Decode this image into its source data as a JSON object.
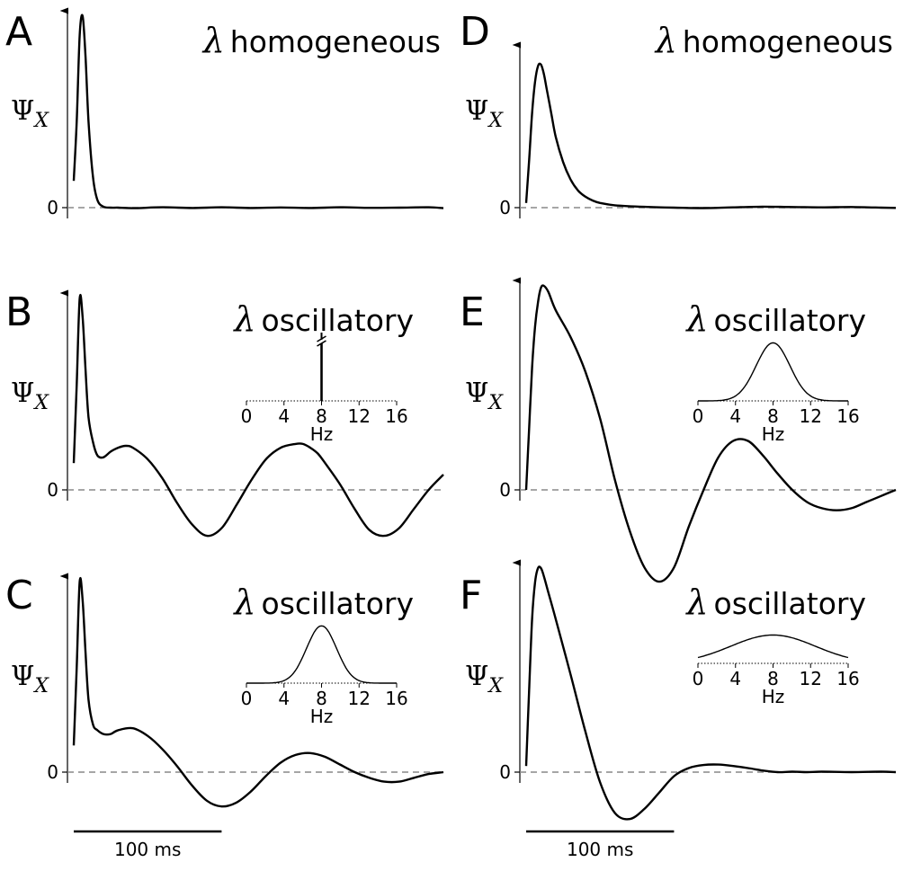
{
  "panels": [
    {
      "id": "A",
      "label": "A",
      "title_symbol": "λ",
      "title_text": "homogeneous",
      "ylabel_symbol": "Ψ",
      "ylabel_sub": "X",
      "zero_label": "0",
      "inset": null
    },
    {
      "id": "B",
      "label": "B",
      "title_symbol": "λ",
      "title_text": "oscillatory",
      "ylabel_symbol": "Ψ",
      "ylabel_sub": "X",
      "zero_label": "0",
      "inset": {
        "type": "spike",
        "peak_hz": 8,
        "xticks": [
          "0",
          "4",
          "8",
          "12",
          "16"
        ],
        "xlabel": "Hz",
        "axis_break": true
      }
    },
    {
      "id": "C",
      "label": "C",
      "title_symbol": "λ",
      "title_text": "oscillatory",
      "ylabel_symbol": "Ψ",
      "ylabel_sub": "X",
      "zero_label": "0",
      "inset": {
        "type": "gaussian",
        "center_hz": 8,
        "sigma_hz": 1.6,
        "rel_height": 0.85,
        "xticks": [
          "0",
          "4",
          "8",
          "12",
          "16"
        ],
        "xlabel": "Hz"
      }
    },
    {
      "id": "D",
      "label": "D",
      "title_symbol": "λ",
      "title_text": "homogeneous",
      "ylabel_symbol": "Ψ",
      "ylabel_sub": "X",
      "zero_label": "0",
      "inset": null
    },
    {
      "id": "E",
      "label": "E",
      "title_symbol": "λ",
      "title_text": "oscillatory",
      "ylabel_symbol": "Ψ",
      "ylabel_sub": "X",
      "zero_label": "0",
      "inset": {
        "type": "gaussian",
        "center_hz": 8,
        "sigma_hz": 1.8,
        "rel_height": 0.95,
        "xticks": [
          "0",
          "4",
          "8",
          "12",
          "16"
        ],
        "xlabel": "Hz"
      }
    },
    {
      "id": "F",
      "label": "F",
      "title_symbol": "λ",
      "title_text": "oscillatory",
      "ylabel_symbol": "Ψ",
      "ylabel_sub": "X",
      "zero_label": "0",
      "inset": {
        "type": "gaussian",
        "center_hz": 8,
        "sigma_hz": 4.5,
        "rel_height": 0.45,
        "xticks": [
          "0",
          "4",
          "8",
          "12",
          "16"
        ],
        "xlabel": "Hz"
      }
    }
  ],
  "scale_bar": {
    "label": "100 ms",
    "duration_ms": 100
  },
  "chart_data": [
    {
      "panel": "A",
      "type": "line",
      "xlim_ms": [
        0,
        250
      ],
      "ylim": [
        -0.05,
        1.0
      ],
      "x": [
        0,
        2,
        4,
        6,
        8,
        10,
        13,
        16,
        20,
        25,
        30,
        40,
        60,
        80,
        100,
        120,
        140,
        160,
        180,
        200,
        220,
        240,
        250
      ],
      "y": [
        0.14,
        0.45,
        0.9,
        1.0,
        0.78,
        0.45,
        0.16,
        0.04,
        0.005,
        0.0,
        0.0,
        -0.003,
        0.002,
        -0.002,
        0.002,
        -0.002,
        0.001,
        -0.002,
        0.002,
        -0.001,
        0.0,
        0.002,
        -0.003
      ]
    },
    {
      "panel": "B",
      "type": "line",
      "xlim_ms": [
        0,
        250
      ],
      "ylim": [
        -0.25,
        1.0
      ],
      "x": [
        0,
        2,
        4,
        6,
        8,
        10,
        13,
        16,
        20,
        25,
        30,
        35,
        40,
        50,
        60,
        70,
        80,
        90,
        100,
        110,
        120,
        130,
        140,
        150,
        155,
        160,
        165,
        170,
        180,
        190,
        200,
        210,
        220,
        230,
        240,
        250
      ],
      "y": [
        0.14,
        0.55,
        1.0,
        0.9,
        0.62,
        0.38,
        0.25,
        0.18,
        0.17,
        0.2,
        0.22,
        0.23,
        0.22,
        0.16,
        0.06,
        -0.07,
        -0.18,
        -0.24,
        -0.2,
        -0.08,
        0.05,
        0.16,
        0.22,
        0.24,
        0.24,
        0.22,
        0.19,
        0.14,
        0.03,
        -0.1,
        -0.21,
        -0.24,
        -0.2,
        -0.1,
        0.0,
        0.08
      ]
    },
    {
      "panel": "C",
      "type": "line",
      "xlim_ms": [
        0,
        250
      ],
      "ylim": [
        -0.25,
        1.0
      ],
      "x": [
        0,
        2,
        4,
        6,
        8,
        10,
        13,
        16,
        20,
        25,
        30,
        40,
        50,
        60,
        70,
        80,
        90,
        100,
        110,
        120,
        130,
        140,
        150,
        160,
        170,
        180,
        190,
        200,
        210,
        220,
        230,
        240,
        250
      ],
      "y": [
        0.14,
        0.55,
        1.0,
        0.9,
        0.62,
        0.38,
        0.25,
        0.22,
        0.2,
        0.2,
        0.22,
        0.23,
        0.19,
        0.12,
        0.03,
        -0.07,
        -0.15,
        -0.18,
        -0.16,
        -0.1,
        -0.02,
        0.05,
        0.09,
        0.1,
        0.08,
        0.04,
        0.0,
        -0.03,
        -0.05,
        -0.05,
        -0.03,
        -0.01,
        0.0
      ]
    },
    {
      "panel": "D",
      "type": "line",
      "xlim_ms": [
        0,
        250
      ],
      "ylim": [
        -0.05,
        1.0
      ],
      "x": [
        0,
        2,
        4,
        6,
        8,
        10,
        12,
        14,
        17,
        20,
        25,
        30,
        35,
        40,
        45,
        50,
        60,
        80,
        100,
        120,
        140,
        160,
        180,
        200,
        220,
        240,
        250
      ],
      "y": [
        0.03,
        0.3,
        0.6,
        0.8,
        0.9,
        0.91,
        0.85,
        0.75,
        0.6,
        0.45,
        0.29,
        0.18,
        0.11,
        0.07,
        0.045,
        0.03,
        0.015,
        0.005,
        0.0,
        -0.003,
        0.002,
        0.006,
        0.004,
        0.002,
        0.004,
        0.0,
        -0.002
      ]
    },
    {
      "panel": "E",
      "type": "line",
      "xlim_ms": [
        0,
        250
      ],
      "ylim": [
        -0.48,
        1.0
      ],
      "x": [
        0,
        2,
        4,
        6,
        8,
        10,
        12,
        15,
        20,
        30,
        40,
        50,
        60,
        70,
        80,
        90,
        100,
        110,
        120,
        130,
        140,
        150,
        160,
        170,
        180,
        190,
        200,
        210,
        220,
        230,
        240,
        250
      ],
      "y": [
        0.0,
        0.3,
        0.6,
        0.8,
        0.92,
        0.99,
        1.0,
        0.97,
        0.88,
        0.75,
        0.58,
        0.35,
        0.05,
        -0.2,
        -0.38,
        -0.45,
        -0.38,
        -0.18,
        0.0,
        0.16,
        0.24,
        0.24,
        0.17,
        0.08,
        0.0,
        -0.06,
        -0.09,
        -0.1,
        -0.09,
        -0.06,
        -0.03,
        0.0
      ]
    },
    {
      "panel": "F",
      "type": "line",
      "xlim_ms": [
        0,
        250
      ],
      "ylim": [
        -0.25,
        1.0
      ],
      "x": [
        0,
        2,
        4,
        6,
        8,
        10,
        12,
        15,
        20,
        30,
        40,
        50,
        60,
        70,
        80,
        90,
        100,
        110,
        120,
        130,
        140,
        150,
        160,
        170,
        180,
        190,
        200,
        220,
        240,
        250
      ],
      "y": [
        0.03,
        0.4,
        0.75,
        0.93,
        1.0,
        1.0,
        0.96,
        0.88,
        0.75,
        0.48,
        0.2,
        -0.05,
        -0.2,
        -0.23,
        -0.18,
        -0.1,
        -0.02,
        0.02,
        0.035,
        0.037,
        0.03,
        0.02,
        0.008,
        0.0,
        0.002,
        0.0,
        0.002,
        0.0,
        0.002,
        0.0
      ]
    }
  ]
}
